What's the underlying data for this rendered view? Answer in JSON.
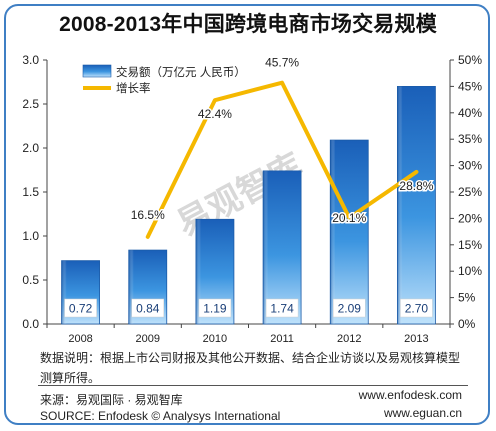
{
  "header": {
    "title": "2008-2013年中国跨境电商市场交易规模"
  },
  "chart_data": {
    "type": "bar",
    "title": "2008-2013年中国跨境电商市场交易规模",
    "categories": [
      "2008",
      "2009",
      "2010",
      "2011",
      "2012",
      "2013"
    ],
    "series": [
      {
        "name": "交易额（万亿元 人民币）",
        "type": "bar",
        "axis": "left",
        "values": [
          0.72,
          0.84,
          1.19,
          1.74,
          2.09,
          2.7
        ],
        "labels": [
          "0.72",
          "0.84",
          "1.19",
          "1.74",
          "2.09",
          "2.70"
        ],
        "color": "#1f7fd0"
      },
      {
        "name": "增长率",
        "type": "line",
        "axis": "right",
        "values": [
          null,
          16.5,
          42.4,
          45.7,
          20.1,
          28.8
        ],
        "labels": [
          "",
          "16.5%",
          "42.4%",
          "45.7%",
          "20.1%",
          "28.8%"
        ],
        "color": "#f5b800"
      }
    ],
    "y_left": {
      "min": 0,
      "max": 3.0,
      "ticks": [
        "0.0",
        "0.5",
        "1.0",
        "1.5",
        "2.0",
        "2.5",
        "3.0"
      ]
    },
    "y_right": {
      "min": 0,
      "max": 50,
      "ticks": [
        "0%",
        "5%",
        "10%",
        "15%",
        "20%",
        "25%",
        "30%",
        "35%",
        "40%",
        "45%",
        "50%"
      ]
    },
    "legend_position": "top-left",
    "grid": false,
    "watermark": "易观智库"
  },
  "notes": {
    "description": "数据说明：根据上市公司财报及其他公开数据、结合企业访谈以及易观核算模型测算所得。",
    "source_cn": "来源：易观国际 · 易观智库",
    "source_en": "SOURCE: Enfodesk © Analysys International",
    "url1": "www.enfodesk.com",
    "url2": "www.eguan.cn"
  }
}
